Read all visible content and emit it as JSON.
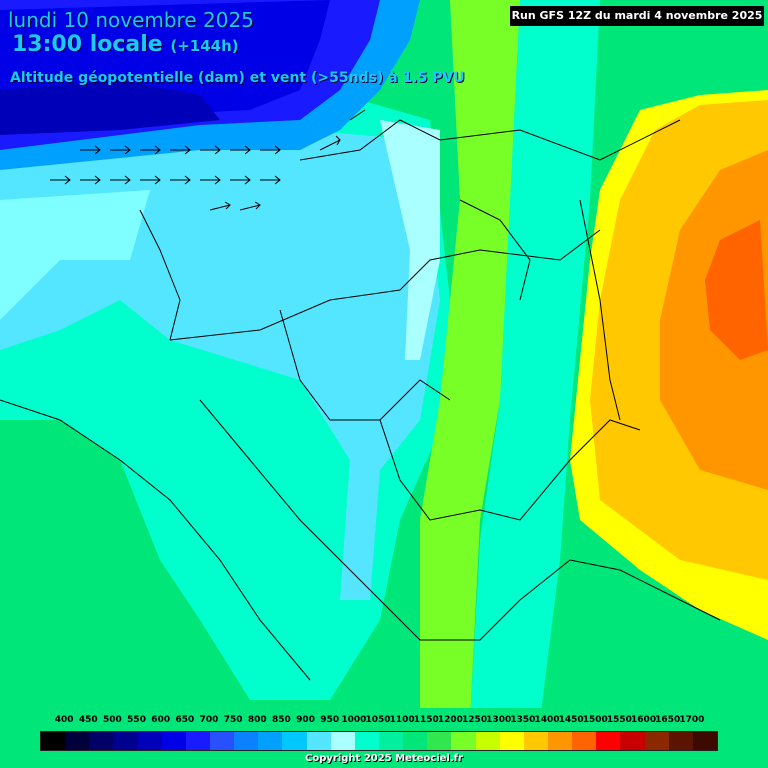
{
  "header": {
    "date": "lundi 10 novembre 2025",
    "time": "13:00 locale",
    "lead": "(+144h)",
    "parameter": "Altitude géopotentielle (dam) et vent (>55nds) à 1.5 PVU",
    "run": "Run GFS 12Z du mardi 4 novembre 2025"
  },
  "legend": {
    "labels": [
      "400",
      "450",
      "500",
      "550",
      "600",
      "650",
      "700",
      "750",
      "800",
      "850",
      "900",
      "950",
      "1000",
      "1050",
      "1100",
      "1150",
      "1200",
      "1250",
      "1300",
      "1350",
      "1400",
      "1450",
      "1500",
      "1550",
      "1600",
      "1650",
      "1700"
    ],
    "colors": [
      "#000000",
      "#00003a",
      "#000066",
      "#000090",
      "#0000b8",
      "#0000e6",
      "#1a1aff",
      "#2850ff",
      "#0a82ff",
      "#00a0ff",
      "#00c8ff",
      "#55e6ff",
      "#aaffff",
      "#00ffcc",
      "#00f0a0",
      "#00e678",
      "#32e650",
      "#78ff28",
      "#c8ff00",
      "#ffff00",
      "#ffc800",
      "#ff9600",
      "#ff6400",
      "#ff0000",
      "#c80000",
      "#8c2800",
      "#5a1400",
      "#3c0a00"
    ]
  },
  "copyright": "Copyright 2025 Meteociel.fr",
  "colors": {
    "title": "#1ec8ff",
    "deep_blue": "#0000e6",
    "aqua": "#7fffff",
    "green": "#00e678",
    "orange": "#ff9600"
  }
}
